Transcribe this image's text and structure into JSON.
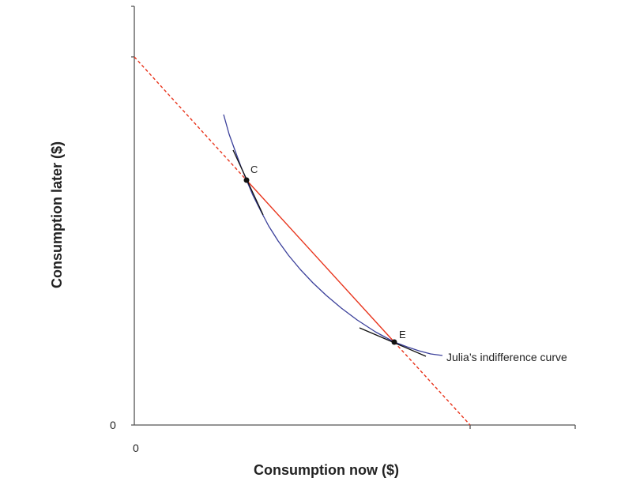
{
  "diagram": {
    "x_axis_label": "Consumption now ($)",
    "y_axis_label": "Consumption later ($)",
    "x_origin_label": "0",
    "y_origin_label": "0",
    "points": [
      {
        "label": "C"
      },
      {
        "label": "E"
      }
    ],
    "curve_label": "Julia’s indifference curve",
    "colors": {
      "budget_line": "#e8341c",
      "indifference_curve": "#3a3f9a",
      "tangents": "#111111",
      "axes": "#555555"
    }
  }
}
